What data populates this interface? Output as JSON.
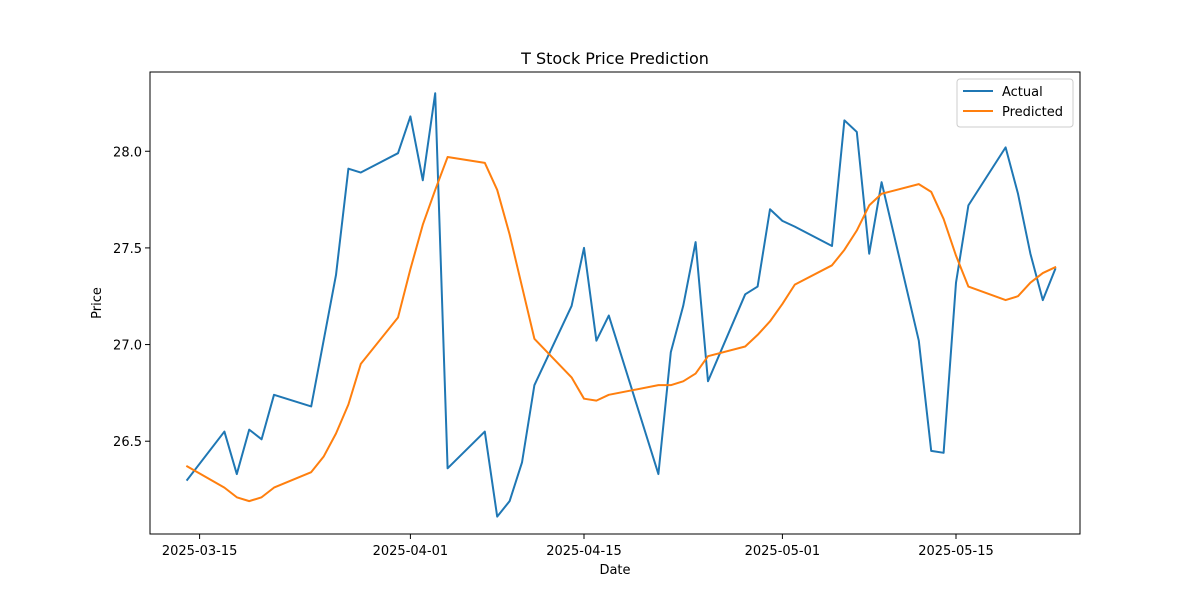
{
  "chart_data": {
    "type": "line",
    "title": "T Stock Price Prediction",
    "xlabel": "Date",
    "ylabel": "Price",
    "xlim": [
      "2025-03-11",
      "2025-05-25"
    ],
    "ylim": [
      26.02,
      28.41
    ],
    "x_ticks": [
      "2025-03-15",
      "2025-04-01",
      "2025-04-15",
      "2025-05-01",
      "2025-05-15"
    ],
    "y_ticks": [
      "26.5",
      "27.0",
      "27.5",
      "28.0"
    ],
    "legend_position": "top-right",
    "grid": false,
    "series": [
      {
        "name": "Actual",
        "color": "#1f77b4",
        "x": [
          "2025-03-14",
          "2025-03-17",
          "2025-03-18",
          "2025-03-19",
          "2025-03-20",
          "2025-03-21",
          "2025-03-24",
          "2025-03-25",
          "2025-03-26",
          "2025-03-27",
          "2025-03-28",
          "2025-03-31",
          "2025-04-01",
          "2025-04-02",
          "2025-04-03",
          "2025-04-04",
          "2025-04-07",
          "2025-04-08",
          "2025-04-09",
          "2025-04-10",
          "2025-04-11",
          "2025-04-14",
          "2025-04-15",
          "2025-04-16",
          "2025-04-17",
          "2025-04-21",
          "2025-04-22",
          "2025-04-23",
          "2025-04-24",
          "2025-04-25",
          "2025-04-28",
          "2025-04-29",
          "2025-04-30",
          "2025-05-01",
          "2025-05-02",
          "2025-05-05",
          "2025-05-06",
          "2025-05-07",
          "2025-05-08",
          "2025-05-09",
          "2025-05-12",
          "2025-05-13",
          "2025-05-14",
          "2025-05-15",
          "2025-05-16",
          "2025-05-19",
          "2025-05-20",
          "2025-05-21",
          "2025-05-22",
          "2025-05-23"
        ],
        "values": [
          26.3,
          26.55,
          26.33,
          26.56,
          26.51,
          26.74,
          26.68,
          27.02,
          27.36,
          27.91,
          27.89,
          27.99,
          28.18,
          27.85,
          28.3,
          26.36,
          26.55,
          26.11,
          26.19,
          26.39,
          26.79,
          27.2,
          27.5,
          27.02,
          27.15,
          26.33,
          26.96,
          27.2,
          27.53,
          26.81,
          27.26,
          27.3,
          27.7,
          27.64,
          27.61,
          27.51,
          28.16,
          28.1,
          27.47,
          27.84,
          27.02,
          26.45,
          26.44,
          27.32,
          27.72,
          28.02,
          27.78,
          27.47,
          27.23,
          27.39
        ]
      },
      {
        "name": "Predicted",
        "color": "#ff7f0e",
        "x": [
          "2025-03-14",
          "2025-03-17",
          "2025-03-18",
          "2025-03-19",
          "2025-03-20",
          "2025-03-21",
          "2025-03-24",
          "2025-03-25",
          "2025-03-26",
          "2025-03-27",
          "2025-03-28",
          "2025-03-31",
          "2025-04-01",
          "2025-04-02",
          "2025-04-03",
          "2025-04-04",
          "2025-04-07",
          "2025-04-08",
          "2025-04-09",
          "2025-04-10",
          "2025-04-11",
          "2025-04-14",
          "2025-04-15",
          "2025-04-16",
          "2025-04-17",
          "2025-04-21",
          "2025-04-22",
          "2025-04-23",
          "2025-04-24",
          "2025-04-25",
          "2025-04-28",
          "2025-04-29",
          "2025-04-30",
          "2025-05-01",
          "2025-05-02",
          "2025-05-05",
          "2025-05-06",
          "2025-05-07",
          "2025-05-08",
          "2025-05-09",
          "2025-05-12",
          "2025-05-13",
          "2025-05-14",
          "2025-05-15",
          "2025-05-16",
          "2025-05-19",
          "2025-05-20",
          "2025-05-21",
          "2025-05-22",
          "2025-05-23"
        ],
        "values": [
          26.37,
          26.26,
          26.21,
          26.19,
          26.21,
          26.26,
          26.34,
          26.42,
          26.54,
          26.69,
          26.9,
          27.14,
          27.39,
          27.62,
          27.8,
          27.97,
          27.94,
          27.8,
          27.57,
          27.3,
          27.03,
          26.83,
          26.72,
          26.71,
          26.74,
          26.79,
          26.79,
          26.81,
          26.85,
          26.94,
          26.99,
          27.05,
          27.12,
          27.21,
          27.31,
          27.41,
          27.49,
          27.59,
          27.72,
          27.78,
          27.83,
          27.79,
          27.65,
          27.46,
          27.3,
          27.23,
          27.25,
          27.32,
          27.37,
          27.4
        ]
      }
    ]
  }
}
